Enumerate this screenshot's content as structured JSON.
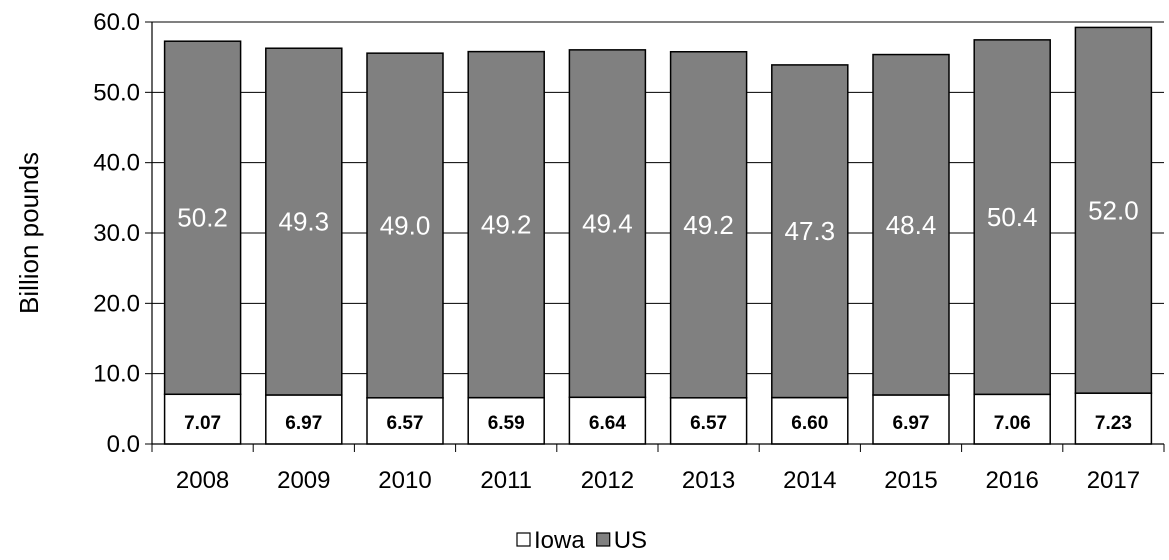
{
  "chart_data": {
    "type": "bar",
    "stacked": true,
    "categories": [
      "2008",
      "2009",
      "2010",
      "2011",
      "2012",
      "2013",
      "2014",
      "2015",
      "2016",
      "2017"
    ],
    "series": [
      {
        "name": "Iowa",
        "color": "#ffffff",
        "values": [
          7.07,
          6.97,
          6.57,
          6.59,
          6.64,
          6.57,
          6.6,
          6.97,
          7.06,
          7.23
        ],
        "labels": [
          "7.07",
          "6.97",
          "6.57",
          "6.59",
          "6.64",
          "6.57",
          "6.60",
          "6.97",
          "7.06",
          "7.23"
        ]
      },
      {
        "name": "US",
        "color": "#808080",
        "values": [
          50.2,
          49.3,
          49.0,
          49.2,
          49.4,
          49.2,
          47.3,
          48.4,
          50.4,
          52.0
        ],
        "labels": [
          "50.2",
          "49.3",
          "49.0",
          "49.2",
          "49.4",
          "49.2",
          "47.3",
          "48.4",
          "50.4",
          "52.0"
        ]
      }
    ],
    "ylabel": "Billion pounds",
    "xlabel": "",
    "ylim": [
      0,
      60
    ],
    "yticks": [
      "0.0",
      "10.0",
      "20.0",
      "30.0",
      "40.0",
      "50.0",
      "60.0"
    ],
    "grid": true,
    "legend_position": "bottom"
  }
}
